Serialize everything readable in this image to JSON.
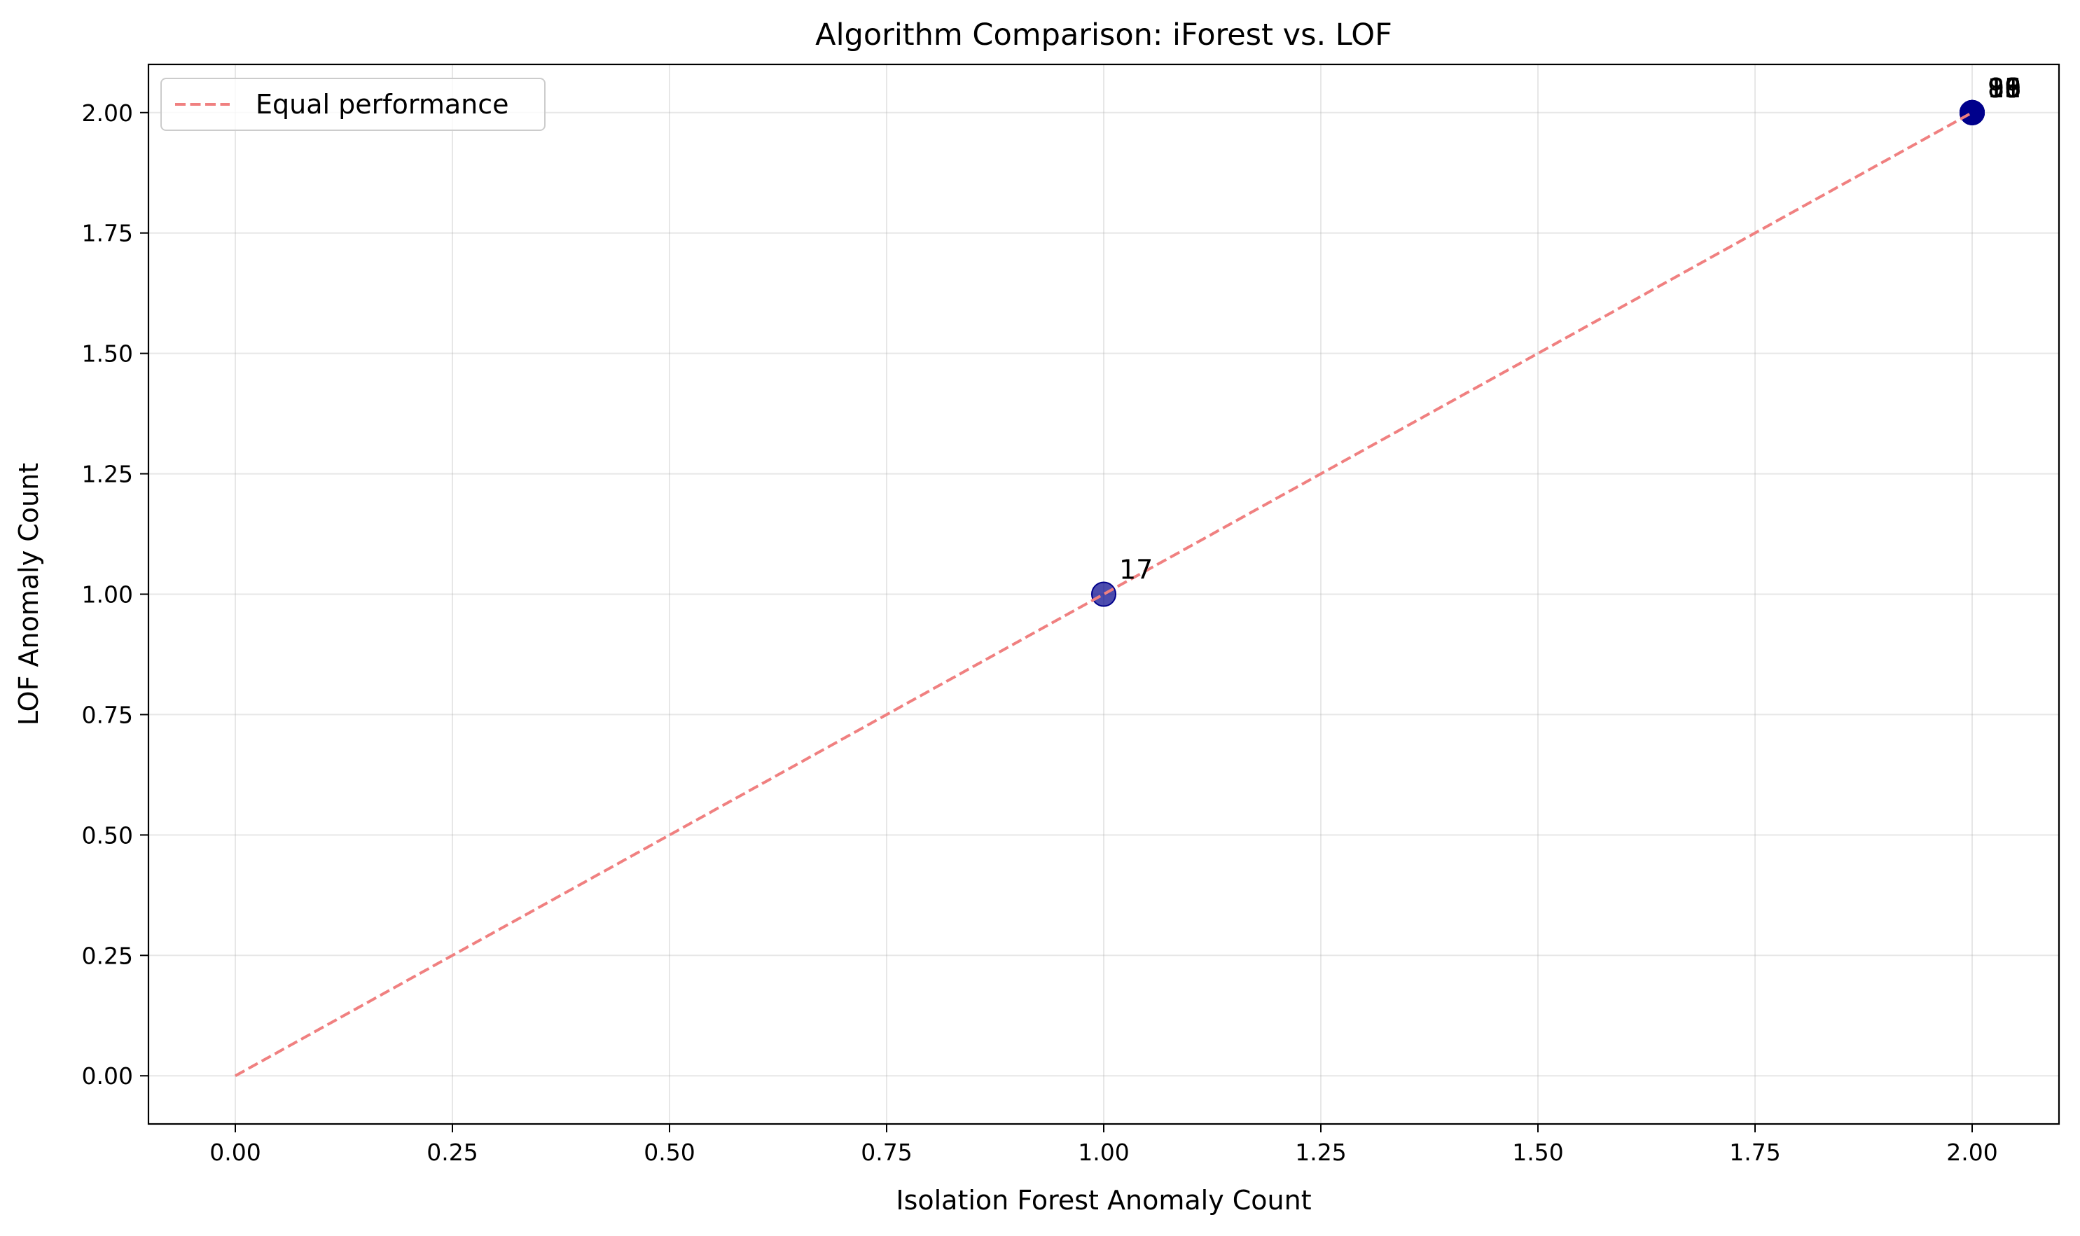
{
  "chart_data": {
    "type": "scatter",
    "title": "Algorithm Comparison: iForest vs. LOF",
    "xlabel": "Isolation Forest Anomaly Count",
    "ylabel": "LOF Anomaly Count",
    "xlim": [
      -0.1,
      2.1
    ],
    "ylim": [
      -0.1,
      2.1
    ],
    "x_ticks": [
      0.0,
      0.25,
      0.5,
      0.75,
      1.0,
      1.25,
      1.5,
      1.75,
      2.0
    ],
    "y_ticks": [
      0.0,
      0.25,
      0.5,
      0.75,
      1.0,
      1.25,
      1.5,
      1.75,
      2.0
    ],
    "x_tick_labels": [
      "0.00",
      "0.25",
      "0.50",
      "0.75",
      "1.00",
      "1.25",
      "1.50",
      "1.75",
      "2.00"
    ],
    "y_tick_labels": [
      "0.00",
      "0.25",
      "0.50",
      "0.75",
      "1.00",
      "1.25",
      "1.50",
      "1.75",
      "2.00"
    ],
    "grid": true,
    "legend_position": "top-left",
    "series": [
      {
        "kind": "scatter",
        "color": "#00008b",
        "points": [
          {
            "x": 1,
            "y": 1,
            "label": "17"
          },
          {
            "x": 2,
            "y": 2,
            "label": "8"
          },
          {
            "x": 2,
            "y": 2,
            "label": "9"
          },
          {
            "x": 2,
            "y": 2,
            "label": "10"
          },
          {
            "x": 2,
            "y": 2,
            "label": "11"
          },
          {
            "x": 2,
            "y": 2,
            "label": "13"
          },
          {
            "x": 2,
            "y": 2,
            "label": "15"
          },
          {
            "x": 2,
            "y": 2,
            "label": "16"
          },
          {
            "x": 2,
            "y": 2,
            "label": "18"
          },
          {
            "x": 2,
            "y": 2,
            "label": "19"
          }
        ]
      },
      {
        "kind": "line",
        "name": "Equal performance",
        "color": "#f08080",
        "dash": true,
        "x": [
          0,
          2
        ],
        "y": [
          0,
          2
        ]
      }
    ]
  }
}
